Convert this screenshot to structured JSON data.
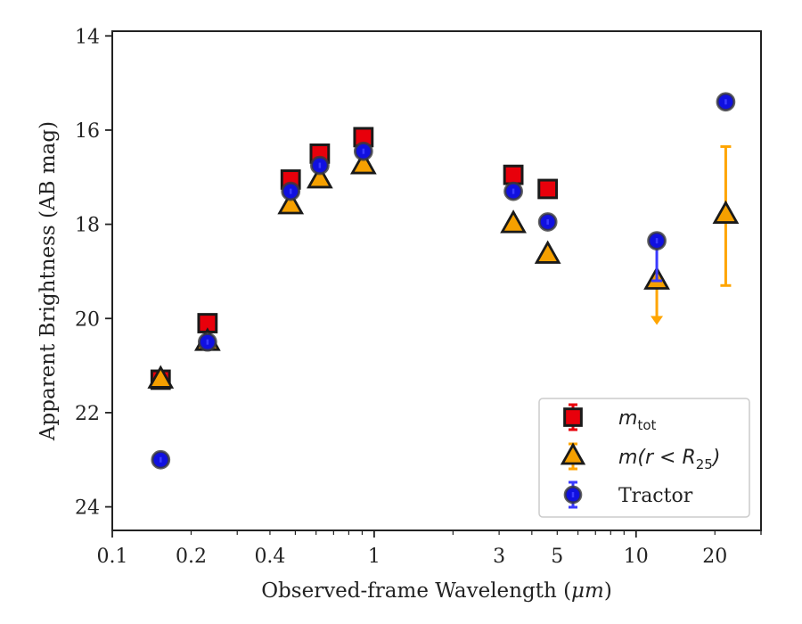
{
  "chart_data": {
    "type": "scatter",
    "title": "",
    "xlabel": "Observed-frame Wavelength (",
    "xlabel_unit": "μm",
    "xlabel_close": ")",
    "ylabel": "Apparent Brightness (AB mag)",
    "xscale": "log",
    "xlim": [
      0.1,
      30
    ],
    "ylim": [
      24.5,
      13.9
    ],
    "y_inverted": true,
    "grid": false,
    "legend_position": "lower-right",
    "x_tick_labels": [
      {
        "value": 0.1,
        "label": "0.1"
      },
      {
        "value": 0.2,
        "label": "0.2"
      },
      {
        "value": 0.4,
        "label": "0.4"
      },
      {
        "value": 1,
        "label": "1"
      },
      {
        "value": 3,
        "label": "3"
      },
      {
        "value": 5,
        "label": "5"
      },
      {
        "value": 10,
        "label": "10"
      },
      {
        "value": 20,
        "label": "20"
      }
    ],
    "y_tick_labels": [
      {
        "value": 14,
        "label": "14"
      },
      {
        "value": 16,
        "label": "16"
      },
      {
        "value": 18,
        "label": "18"
      },
      {
        "value": 20,
        "label": "20"
      },
      {
        "value": 22,
        "label": "22"
      },
      {
        "value": 24,
        "label": "24"
      }
    ],
    "series": [
      {
        "name_main": "m",
        "name_sub": "tot",
        "name_tail": "",
        "marker": "square",
        "color": "#e8000b",
        "edge_color": "#1a1a1a",
        "points": [
          {
            "x": 0.153,
            "y": 21.3
          },
          {
            "x": 0.231,
            "y": 20.1
          },
          {
            "x": 0.48,
            "y": 17.05
          },
          {
            "x": 0.62,
            "y": 16.5
          },
          {
            "x": 0.91,
            "y": 16.15
          },
          {
            "x": 3.4,
            "y": 16.95
          },
          {
            "x": 4.6,
            "y": 17.25
          }
        ]
      },
      {
        "name_main": "m(r < R",
        "name_sub": "25",
        "name_tail": ")",
        "marker": "triangle",
        "color": "#f5a000",
        "edge_color": "#1a1a1a",
        "errorbar_color": "#ffa500",
        "points": [
          {
            "x": 0.153,
            "y": 21.3
          },
          {
            "x": 0.231,
            "y": 20.5
          },
          {
            "x": 0.48,
            "y": 17.6
          },
          {
            "x": 0.62,
            "y": 17.05
          },
          {
            "x": 0.91,
            "y": 16.75
          },
          {
            "x": 3.4,
            "y": 18.0
          },
          {
            "x": 4.6,
            "y": 18.65
          },
          {
            "x": 12.0,
            "y": 19.2,
            "upper_limit": true,
            "arrow_to": 20.1
          },
          {
            "x": 22.0,
            "y": 17.8,
            "yerr_low": 16.35,
            "yerr_high": 19.3
          }
        ]
      },
      {
        "name_main": "Tractor",
        "name_sub": "",
        "name_tail": "",
        "marker": "circle",
        "color": "#1010e0",
        "edge_color": "#3a3a3a",
        "errorbar_color": "#3a3aff",
        "points": [
          {
            "x": 0.153,
            "y": 23.0
          },
          {
            "x": 0.231,
            "y": 20.5
          },
          {
            "x": 0.48,
            "y": 17.3
          },
          {
            "x": 0.62,
            "y": 16.75
          },
          {
            "x": 0.91,
            "y": 16.45
          },
          {
            "x": 3.4,
            "y": 17.3
          },
          {
            "x": 4.6,
            "y": 17.95
          },
          {
            "x": 12.0,
            "y": 18.35,
            "yerr_low": 18.3,
            "yerr_high": 19.2
          },
          {
            "x": 22.0,
            "y": 15.4
          }
        ]
      }
    ]
  }
}
